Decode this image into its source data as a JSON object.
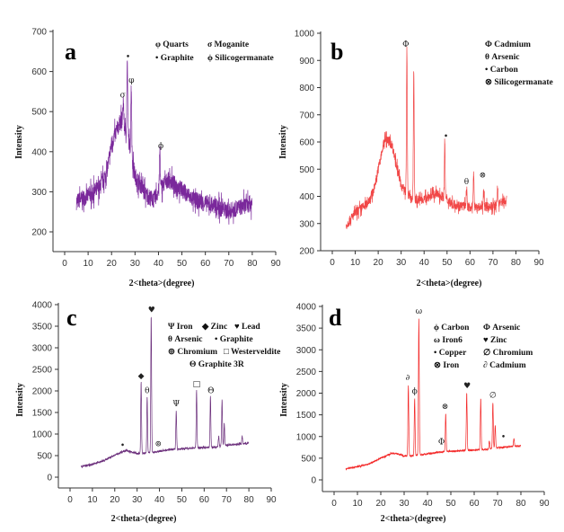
{
  "chart_data": [
    {
      "type": "line",
      "panel_label": "a",
      "xlabel": "2<theta>(degree)",
      "ylabel": "Intensity",
      "xlim": [
        0,
        90
      ],
      "ylim": [
        150,
        700
      ],
      "xticks": [
        0,
        10,
        20,
        30,
        40,
        50,
        60,
        70,
        80,
        90
      ],
      "yticks": [
        200,
        300,
        400,
        500,
        600,
        700
      ],
      "color": "#6b1190",
      "noise": 30,
      "baseline": [
        [
          5,
          275
        ],
        [
          10,
          290
        ],
        [
          15,
          310
        ],
        [
          18,
          350
        ],
        [
          20,
          420
        ],
        [
          24,
          480
        ],
        [
          27,
          440
        ],
        [
          30,
          340
        ],
        [
          35,
          290
        ],
        [
          38,
          280
        ],
        [
          41,
          310
        ],
        [
          44,
          330
        ],
        [
          48,
          315
        ],
        [
          55,
          280
        ],
        [
          65,
          262
        ],
        [
          70,
          252
        ],
        [
          80,
          272
        ]
      ],
      "peaks": [
        [
          25,
          530
        ],
        [
          26.7,
          625
        ],
        [
          28.4,
          570
        ],
        [
          40.6,
          405
        ]
      ],
      "legend": [
        "φ Quarts",
        "σ Moganite",
        "• Graphite",
        "ϕ Silicogermanate"
      ],
      "annotations": [
        {
          "symbol": "σ",
          "x": 24.8,
          "y": 535
        },
        {
          "symbol": "•",
          "x": 27,
          "y": 630
        },
        {
          "symbol": "φ",
          "x": 28.5,
          "y": 572
        },
        {
          "symbol": "ϕ",
          "x": 41,
          "y": 408
        }
      ]
    },
    {
      "type": "line",
      "panel_label": "b",
      "xlabel": "2<theta>(degree)",
      "ylabel": "Intensity",
      "xlim": [
        0,
        90
      ],
      "ylim": [
        200,
        1000
      ],
      "xticks": [
        0,
        10,
        20,
        30,
        40,
        50,
        60,
        70,
        80,
        90
      ],
      "yticks": [
        200,
        300,
        400,
        500,
        600,
        700,
        800,
        900,
        1000
      ],
      "color": "#f03434",
      "noise": 25,
      "baseline": [
        [
          6,
          292
        ],
        [
          10,
          340
        ],
        [
          15,
          370
        ],
        [
          18,
          420
        ],
        [
          20,
          500
        ],
        [
          23,
          615
        ],
        [
          26,
          590
        ],
        [
          30,
          440
        ],
        [
          35,
          385
        ],
        [
          40,
          390
        ],
        [
          45,
          410
        ],
        [
          48,
          400
        ],
        [
          52,
          372
        ],
        [
          60,
          360
        ],
        [
          70,
          362
        ],
        [
          76,
          388
        ]
      ],
      "peaks": [
        [
          32.5,
          930
        ],
        [
          35.5,
          870
        ],
        [
          49,
          600
        ],
        [
          58.5,
          430
        ],
        [
          61.6,
          490
        ],
        [
          66,
          430
        ],
        [
          72,
          440
        ]
      ],
      "legend": [
        "Φ Cadmium",
        "θ Arsenic",
        "• Carbon",
        "⊗ Silicogermanate"
      ],
      "annotations": [
        {
          "symbol": "Φ",
          "x": 32,
          "y": 950
        },
        {
          "symbol": "•",
          "x": 49.5,
          "y": 612
        },
        {
          "symbol": "θ",
          "x": 58.5,
          "y": 445
        },
        {
          "symbol": "⊗",
          "x": 65.5,
          "y": 470
        }
      ]
    },
    {
      "type": "line",
      "panel_label": "c",
      "xlabel": "2<theta>(degree)",
      "ylabel": "Intensity",
      "xlim": [
        0,
        90
      ],
      "ylim": [
        -250,
        4000
      ],
      "xticks": [
        0,
        10,
        20,
        30,
        40,
        50,
        60,
        70,
        80,
        90
      ],
      "yticks": [
        0,
        500,
        1000,
        1500,
        2000,
        2500,
        3000,
        3500,
        4000
      ],
      "color": "#5c1a6e",
      "noise": 30,
      "baseline": [
        [
          5,
          250
        ],
        [
          10,
          300
        ],
        [
          15,
          380
        ],
        [
          20,
          510
        ],
        [
          25,
          620
        ],
        [
          28,
          580
        ],
        [
          30,
          550
        ],
        [
          35,
          560
        ],
        [
          40,
          600
        ],
        [
          45,
          640
        ],
        [
          50,
          660
        ],
        [
          60,
          690
        ],
        [
          65,
          700
        ],
        [
          70,
          740
        ],
        [
          80,
          790
        ]
      ],
      "peaks": [
        [
          31.8,
          2200
        ],
        [
          34.5,
          1870
        ],
        [
          36.3,
          3750
        ],
        [
          47.5,
          1550
        ],
        [
          56.6,
          2020
        ],
        [
          62.8,
          1880
        ],
        [
          66.5,
          950
        ],
        [
          68,
          1800
        ],
        [
          69,
          1250
        ],
        [
          77,
          950
        ]
      ],
      "legend": [
        "Ψ Iron",
        "◆ Zinc",
        "♥ Lead",
        "θ Arsenic",
        "• Graphite",
        "⊚ Chromium",
        "□ Westerveldite",
        "Θ Graphite 3R"
      ],
      "annotations": [
        {
          "symbol": "•",
          "x": 23.5,
          "y": 680
        },
        {
          "symbol": "◆",
          "x": 31.8,
          "y": 2290
        },
        {
          "symbol": "θ",
          "x": 34.5,
          "y": 1950
        },
        {
          "symbol": "♥",
          "x": 36.5,
          "y": 3820
        },
        {
          "symbol": "⊚",
          "x": 39.5,
          "y": 720
        },
        {
          "symbol": "Ψ",
          "x": 47.5,
          "y": 1650
        },
        {
          "symbol": "□",
          "x": 56.6,
          "y": 2100
        },
        {
          "symbol": "Θ",
          "x": 63,
          "y": 1950
        }
      ]
    },
    {
      "type": "line",
      "panel_label": "d",
      "xlabel": "2<theta>(degree)",
      "ylabel": "Intensity",
      "xlim": [
        0,
        90
      ],
      "ylim": [
        -250,
        4000
      ],
      "xticks": [
        0,
        10,
        20,
        30,
        40,
        50,
        60,
        70,
        80,
        90
      ],
      "yticks": [
        0,
        500,
        1000,
        1500,
        2000,
        2500,
        3000,
        3500,
        4000
      ],
      "color": "#f21212",
      "noise": 25,
      "baseline": [
        [
          5,
          260
        ],
        [
          10,
          300
        ],
        [
          15,
          370
        ],
        [
          20,
          500
        ],
        [
          25,
          620
        ],
        [
          28,
          590
        ],
        [
          30,
          550
        ],
        [
          35,
          560
        ],
        [
          40,
          600
        ],
        [
          45,
          640
        ],
        [
          50,
          660
        ],
        [
          60,
          690
        ],
        [
          65,
          700
        ],
        [
          70,
          740
        ],
        [
          80,
          790
        ]
      ],
      "peaks": [
        [
          31.8,
          2200
        ],
        [
          34.5,
          1870
        ],
        [
          36.3,
          3720
        ],
        [
          47.8,
          1530
        ],
        [
          56.8,
          2000
        ],
        [
          62.8,
          1870
        ],
        [
          66.5,
          900
        ],
        [
          68,
          1780
        ],
        [
          69,
          1250
        ],
        [
          77,
          950
        ]
      ],
      "legend": [
        "ϕ Carbon",
        "Φ Arsenic",
        "ω Iron6",
        "♥ Zinc",
        "• Copper",
        "∅ Chromium",
        "⊗ Iron",
        "∂ Cadmium"
      ],
      "annotations": [
        {
          "symbol": "∂",
          "x": 31.5,
          "y": 2300
        },
        {
          "symbol": "ϕ",
          "x": 34.5,
          "y": 1990
        },
        {
          "symbol": "ω",
          "x": 36.3,
          "y": 3830
        },
        {
          "symbol": "Φ",
          "x": 46,
          "y": 820
        },
        {
          "symbol": "⊗",
          "x": 47.5,
          "y": 1640
        },
        {
          "symbol": "♥",
          "x": 57,
          "y": 2110
        },
        {
          "symbol": "∅",
          "x": 68,
          "y": 1900
        },
        {
          "symbol": "•",
          "x": 72.5,
          "y": 930
        }
      ]
    }
  ]
}
